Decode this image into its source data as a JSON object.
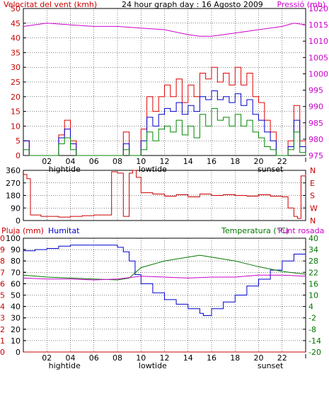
{
  "colors": {
    "wind_axis": "#cc0000",
    "pressure": "#cc00cc",
    "gust": "#e00000",
    "wind_avg": "#0000cc",
    "wind_min": "#008800",
    "direction": "#cc0000",
    "rain": "#cc0000",
    "humidity": "#0000cc",
    "temperature": "#007700",
    "dewpoint": "#cc00cc",
    "frame": "#000000",
    "grid": "#000000"
  },
  "chart_data": [
    {
      "type": "line",
      "title": "24 hour graph day : 16 Agosto 2009",
      "ylabel_left": "Velocitat del vent (kmh)",
      "ylabel_right": "Pressió (mb)",
      "ylim_left": [
        0,
        50
      ],
      "ylim_right": [
        975,
        1020
      ],
      "yticks_left": [
        "0",
        "5",
        "10",
        "15",
        "20",
        "25",
        "30",
        "35",
        "40",
        "45",
        "50"
      ],
      "yticks_right": [
        "975",
        "980",
        "985",
        "990",
        "995",
        "1000",
        "1005",
        "1010",
        "1015",
        "1020"
      ],
      "xlim": [
        0,
        24
      ],
      "xticks": [
        "02",
        "04",
        "06",
        "08",
        "10",
        "12",
        "14",
        "16",
        "18",
        "20",
        "22"
      ],
      "annotations": [
        {
          "label": "hightide",
          "x": 3.5
        },
        {
          "label": "lowtide",
          "x": 11
        },
        {
          "label": "sunset",
          "x": 21
        }
      ],
      "series": [
        {
          "name": "pressure",
          "axis": "right",
          "x": [
            0,
            2,
            4,
            6,
            8,
            10,
            12,
            14,
            15,
            16,
            18,
            20,
            22,
            23,
            24
          ],
          "values": [
            1014.5,
            1015.5,
            1015,
            1014.5,
            1014.5,
            1014,
            1013.5,
            1012,
            1011.5,
            1011.5,
            1012.5,
            1013.5,
            1014.5,
            1015.5,
            1015
          ]
        },
        {
          "name": "gust",
          "axis": "left",
          "x": [
            0,
            0.5,
            1,
            2,
            3,
            3.5,
            4,
            4.5,
            5,
            6,
            7,
            8,
            8.5,
            9,
            9.5,
            10,
            10.5,
            11,
            11.5,
            12,
            12.5,
            13,
            13.5,
            14,
            14.5,
            15,
            15.5,
            16,
            16.5,
            17,
            17.5,
            18,
            18.5,
            19,
            19.5,
            20,
            20.5,
            21,
            21.5,
            22,
            22.5,
            23,
            23.5,
            24
          ],
          "values": [
            5,
            0,
            0,
            0,
            7,
            12,
            5,
            0,
            0,
            0,
            0,
            0,
            8,
            0,
            0,
            9,
            20,
            15,
            20,
            24,
            20,
            26,
            18,
            24,
            20,
            28,
            26,
            30,
            25,
            28,
            24,
            30,
            24,
            28,
            20,
            18,
            12,
            8,
            0,
            0,
            5,
            17,
            5,
            0
          ]
        },
        {
          "name": "wind_avg",
          "axis": "left",
          "x": [
            0,
            0.5,
            1,
            2,
            3,
            3.5,
            4,
            4.5,
            5,
            6,
            7,
            8,
            8.5,
            9,
            9.5,
            10,
            10.5,
            11,
            11.5,
            12,
            12.5,
            13,
            13.5,
            14,
            14.5,
            15,
            15.5,
            16,
            16.5,
            17,
            17.5,
            18,
            18.5,
            19,
            19.5,
            20,
            20.5,
            21,
            21.5,
            22,
            22.5,
            23,
            23.5,
            24
          ],
          "values": [
            5,
            0,
            0,
            0,
            6,
            9,
            4,
            0,
            0,
            0,
            0,
            0,
            4,
            0,
            0,
            5,
            13,
            10,
            14,
            16,
            15,
            18,
            14,
            17,
            15,
            20,
            19,
            22,
            19,
            20,
            18,
            21,
            17,
            19,
            14,
            12,
            8,
            5,
            0,
            0,
            3,
            12,
            3,
            0
          ]
        },
        {
          "name": "wind_min",
          "axis": "left",
          "x": [
            0,
            0.5,
            1,
            2,
            3,
            3.5,
            4,
            4.5,
            5,
            6,
            7,
            8,
            8.5,
            9,
            9.5,
            10,
            10.5,
            11,
            11.5,
            12,
            12.5,
            13,
            13.5,
            14,
            14.5,
            15,
            15.5,
            16,
            16.5,
            17,
            17.5,
            18,
            18.5,
            19,
            19.5,
            20,
            20.5,
            21,
            21.5,
            22,
            22.5,
            23,
            23.5,
            24
          ],
          "values": [
            2,
            0,
            0,
            0,
            4,
            6,
            2,
            0,
            0,
            0,
            0,
            0,
            2,
            0,
            0,
            2,
            8,
            5,
            9,
            10,
            8,
            12,
            7,
            10,
            6,
            14,
            10,
            16,
            12,
            13,
            10,
            14,
            10,
            12,
            8,
            6,
            3,
            2,
            0,
            0,
            2,
            8,
            1,
            0
          ]
        }
      ]
    },
    {
      "type": "line",
      "ylim": [
        0,
        360
      ],
      "yticks": [
        "0",
        "90",
        "180",
        "270",
        "360"
      ],
      "yticks_right": [
        "N",
        "W",
        "S",
        "E",
        "N"
      ],
      "xlim": [
        0,
        24
      ],
      "series": [
        {
          "name": "direction",
          "x": [
            0,
            0.3,
            0.6,
            1,
            1.5,
            2,
            3,
            4,
            5,
            6,
            7,
            7.5,
            8,
            8.5,
            9,
            9.3,
            9.6,
            10,
            11,
            12,
            13,
            14,
            15,
            16,
            17,
            18,
            19,
            20,
            21,
            22,
            22.5,
            23,
            23.3,
            23.6,
            24
          ],
          "values": [
            330,
            300,
            40,
            40,
            30,
            30,
            25,
            30,
            35,
            40,
            40,
            350,
            340,
            30,
            340,
            360,
            310,
            200,
            190,
            175,
            185,
            170,
            190,
            180,
            185,
            180,
            175,
            185,
            175,
            170,
            90,
            30,
            15,
            320,
            330
          ]
        }
      ]
    },
    {
      "type": "line",
      "ylabel_left_1": "Pluja (mm)",
      "ylabel_left_2": "Humitat",
      "ylabel_right_1": "Temperatura (°C)",
      "ylabel_right_2": "Punt rosada",
      "ylim_rain": [
        0,
        10
      ],
      "ylim_humidity": [
        0,
        100
      ],
      "ylim_temp": [
        -20,
        40
      ],
      "yticks_rain": [
        "0",
        "1",
        "2",
        "3",
        "4",
        "5",
        "6",
        "7",
        "8",
        "9",
        "10"
      ],
      "yticks_humidity": [
        "0",
        "10",
        "20",
        "30",
        "40",
        "50",
        "60",
        "70",
        "80",
        "90",
        "100"
      ],
      "yticks_temp": [
        "-20",
        "-14",
        "-8",
        "-2",
        "4",
        "10",
        "16",
        "22",
        "28",
        "34",
        "40"
      ],
      "xlim": [
        0,
        24
      ],
      "xticks": [
        "02",
        "04",
        "06",
        "08",
        "10",
        "12",
        "14",
        "16",
        "18",
        "20",
        "22"
      ],
      "annotations": [
        {
          "label": "hightide",
          "x": 3.5
        },
        {
          "label": "lowtide",
          "x": 11
        },
        {
          "label": "sunset",
          "x": 21
        }
      ],
      "series": [
        {
          "name": "rain",
          "axis": "rain",
          "x": [
            0,
            24
          ],
          "values": [
            0,
            0
          ]
        },
        {
          "name": "humidity",
          "axis": "humidity",
          "x": [
            0,
            1,
            2,
            3,
            4,
            5,
            6,
            7,
            8,
            8.5,
            9,
            9.5,
            10,
            11,
            12,
            13,
            14,
            15,
            15.3,
            16,
            17,
            18,
            19,
            20,
            21,
            22,
            23,
            24
          ],
          "values": [
            89,
            90,
            91,
            93,
            94,
            94,
            94,
            94,
            92,
            88,
            80,
            68,
            60,
            52,
            46,
            42,
            38,
            34,
            32,
            38,
            44,
            50,
            58,
            64,
            72,
            80,
            86,
            87
          ]
        },
        {
          "name": "temperature",
          "axis": "temp",
          "x": [
            0,
            2,
            4,
            6,
            8,
            9,
            10,
            12,
            14,
            15,
            16,
            18,
            20,
            22,
            24
          ],
          "values": [
            20.5,
            19.5,
            19,
            18.5,
            18,
            19,
            24.5,
            28,
            30,
            31,
            30,
            28,
            25,
            22.5,
            21
          ]
        },
        {
          "name": "dewpoint",
          "axis": "temp",
          "x": [
            0,
            2,
            4,
            6,
            8,
            10,
            12,
            14,
            16,
            18,
            20,
            22,
            24
          ],
          "values": [
            19,
            18.5,
            18.5,
            18,
            18.5,
            20,
            19.5,
            19,
            19.5,
            19.5,
            20.5,
            20.5,
            20
          ]
        }
      ]
    }
  ]
}
